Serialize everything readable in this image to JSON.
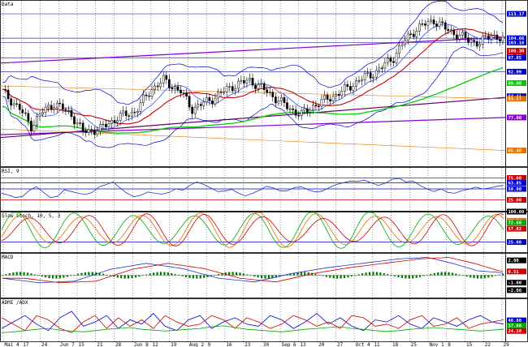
{
  "chart_data": [
    {
      "type": "line",
      "title": "Data",
      "ylim": [
        60,
        118
      ],
      "grid": true,
      "price_path": [
        [
          0,
          86
        ],
        [
          6,
          80
        ],
        [
          10,
          74
        ],
        [
          14,
          79
        ],
        [
          18,
          82
        ],
        [
          24,
          78
        ],
        [
          28,
          72
        ],
        [
          34,
          73
        ],
        [
          40,
          77
        ],
        [
          46,
          79
        ],
        [
          52,
          87
        ],
        [
          56,
          90
        ],
        [
          62,
          86
        ],
        [
          66,
          80
        ],
        [
          72,
          83
        ],
        [
          80,
          88
        ],
        [
          86,
          90
        ],
        [
          92,
          86
        ],
        [
          100,
          80
        ],
        [
          104,
          78
        ],
        [
          108,
          81
        ],
        [
          112,
          83
        ],
        [
          118,
          86
        ],
        [
          124,
          90
        ],
        [
          130,
          93
        ],
        [
          136,
          98
        ],
        [
          140,
          104
        ],
        [
          144,
          108
        ],
        [
          150,
          111
        ],
        [
          154,
          108
        ],
        [
          158,
          106
        ],
        [
          162,
          104
        ],
        [
          166,
          103
        ],
        [
          170,
          106
        ],
        [
          174,
          104
        ]
      ],
      "horizontal_levels": [
        {
          "value": 113.17,
          "label": "113.17",
          "color": "#0000cc"
        },
        {
          "value": 104.66,
          "label": "104.66",
          "color": "#0000cc"
        },
        {
          "value": 103.16,
          "label": "103.16",
          "color": "#0000cc"
        },
        {
          "value": 100.3,
          "label": "100.30",
          "color": "#cc0000"
        },
        {
          "value": 98.5,
          "label": "98.50",
          "color": "#cc0000"
        },
        {
          "value": 97.85,
          "label": "97.85",
          "color": "#0000cc"
        },
        {
          "value": 92.99,
          "label": "92.99",
          "color": "#0000cc"
        },
        {
          "value": 89.0,
          "label": "89.00",
          "color": "#00cc00"
        },
        {
          "value": 84.41,
          "label": "84.41",
          "color": "#0000cc"
        },
        {
          "value": 83.57,
          "label": "83.57",
          "color": "#e07000"
        },
        {
          "value": 77.0,
          "label": "77.00",
          "color": "#8800cc"
        },
        {
          "value": 65.48,
          "label": "65.48",
          "color": "#e07000"
        }
      ]
    },
    {
      "type": "line",
      "title": "RSI, 9",
      "ylim": [
        0,
        100
      ],
      "series": [
        {
          "values": [
            40,
            36,
            30,
            33,
            47,
            55,
            42,
            30,
            33,
            48,
            44,
            40,
            37,
            42,
            55,
            60,
            66,
            52,
            40,
            32,
            36,
            43,
            40,
            38,
            42,
            50,
            47,
            58,
            66,
            60,
            52,
            44,
            45,
            49,
            40,
            34,
            40,
            47,
            56,
            52,
            45,
            46,
            53,
            55,
            48,
            43,
            45,
            53,
            60,
            64,
            68,
            67,
            70,
            64,
            58,
            63,
            72,
            74,
            66,
            68,
            58,
            50,
            44,
            50,
            42,
            40,
            46,
            49,
            54,
            50,
            52,
            56,
            58
          ]
        }
      ],
      "levels": [
        {
          "value": 75.0,
          "label": "75.00",
          "color": "#cc0000"
        },
        {
          "value": 63.85,
          "label": "63.85",
          "color": "#0000cc"
        },
        {
          "value": 50.0,
          "label": "50.00",
          "color": "#0000cc"
        },
        {
          "value": 25.0,
          "label": "25.00",
          "color": "#cc0000"
        }
      ]
    },
    {
      "type": "line",
      "title": "Slow Stoch, 10, 5, 3",
      "ylim": [
        0,
        100
      ],
      "series": [
        {
          "period": 20,
          "phase": 0,
          "amp": 40
        },
        {
          "period": 20,
          "phase": 2,
          "amp": 38
        },
        {
          "period": 20,
          "phase": 4,
          "amp": 34
        }
      ],
      "levels": [
        {
          "value": 100.0,
          "label": "100.00",
          "color": "#000000"
        },
        {
          "value": 77.28,
          "label": "77.28",
          "color": "#e07000"
        },
        {
          "value": 72.6,
          "label": "72.60",
          "color": "#00aa00"
        },
        {
          "value": 57.82,
          "label": "57.82",
          "color": "#cc0000"
        },
        {
          "value": 25.0,
          "label": "25.00",
          "color": "#0000cc"
        }
      ]
    },
    {
      "type": "bar",
      "title": "MACD",
      "ylim": [
        -3,
        3
      ],
      "macd_path": [
        [
          0,
          -0.4
        ],
        [
          10,
          -1.0
        ],
        [
          20,
          -0.8
        ],
        [
          30,
          0.8
        ],
        [
          40,
          1.6
        ],
        [
          50,
          0.9
        ],
        [
          60,
          -0.4
        ],
        [
          70,
          -0.9
        ],
        [
          80,
          0.2
        ],
        [
          90,
          1.0
        ],
        [
          100,
          1.6
        ],
        [
          110,
          2.2
        ],
        [
          118,
          2.4
        ],
        [
          125,
          1.6
        ],
        [
          132,
          0.6
        ],
        [
          140,
          0.3
        ]
      ],
      "histogram_amplitude": 0.45,
      "levels": [
        {
          "value": 2.0,
          "label": "2.00",
          "color": "#000000"
        },
        {
          "value": 0.51,
          "label": "0.51",
          "color": "#cc0000"
        },
        {
          "value": -1.0,
          "label": "-1.00",
          "color": "#000000"
        },
        {
          "value": -2.0,
          "label": "-2.00",
          "color": "#000000"
        }
      ]
    },
    {
      "type": "line",
      "title": "ADMI /ADX",
      "ylim": [
        0,
        100
      ],
      "series": [
        {
          "values": [
            30,
            45,
            60,
            40,
            25,
            55,
            70,
            35,
            45,
            60,
            30,
            50,
            40,
            65,
            35,
            25,
            50,
            60,
            30,
            45,
            55,
            40,
            35,
            60,
            50,
            30,
            45,
            65,
            40,
            55,
            35,
            25,
            50,
            45,
            60,
            40,
            30,
            55,
            45,
            35,
            50,
            60,
            45,
            40
          ]
        },
        {
          "values": [
            55,
            40,
            25,
            60,
            50,
            30,
            20,
            45,
            60,
            30,
            55,
            35,
            50,
            30,
            60,
            45,
            35,
            40,
            60,
            50,
            30,
            55,
            45,
            30,
            40,
            60,
            50,
            35,
            45,
            30,
            60,
            55,
            35,
            40,
            30,
            50,
            60,
            35,
            40,
            55,
            30,
            40,
            45,
            50
          ]
        },
        {
          "values": [
            20,
            22,
            25,
            28,
            30,
            26,
            24,
            22,
            25,
            28,
            30,
            32,
            28,
            26,
            24,
            26,
            28,
            30,
            34,
            36,
            32,
            28,
            26,
            24,
            22,
            25,
            28,
            30,
            32,
            34,
            30,
            28,
            25,
            23,
            25,
            28,
            30,
            32,
            30,
            28,
            26,
            24,
            26,
            28
          ]
        }
      ],
      "levels": [
        {
          "value": 48.8,
          "label": "48.80",
          "color": "#0000cc"
        },
        {
          "value": 37.0,
          "label": "37.00",
          "color": "#00aa00"
        },
        {
          "value": 24.1,
          "label": "24.10",
          "color": "#cc0000"
        }
      ]
    }
  ],
  "x_axis": {
    "tick_labels": [
      "Mai 4",
      "17",
      "24",
      "Jun 7",
      "15",
      "21",
      "28",
      "Jun 8",
      "12",
      "19",
      "Aug 2",
      "9",
      "16",
      "23",
      "30",
      "Sep 6",
      "13",
      "20",
      "27",
      "Oct 4",
      "11",
      "18",
      "25",
      "Nov 1",
      "8",
      "15",
      "22",
      "29"
    ]
  },
  "colors": {
    "price": "#000000",
    "bollinger": "#0000cc",
    "ma_short": "#cc0000",
    "ma_long": "#00cc00",
    "trend_channel": "#8800cc",
    "fib_lines": "#e07000",
    "macd_hist": "#007700",
    "dmi_plus": "#0000cc",
    "dmi_minus": "#cc0000",
    "adx": "#00aa00"
  }
}
